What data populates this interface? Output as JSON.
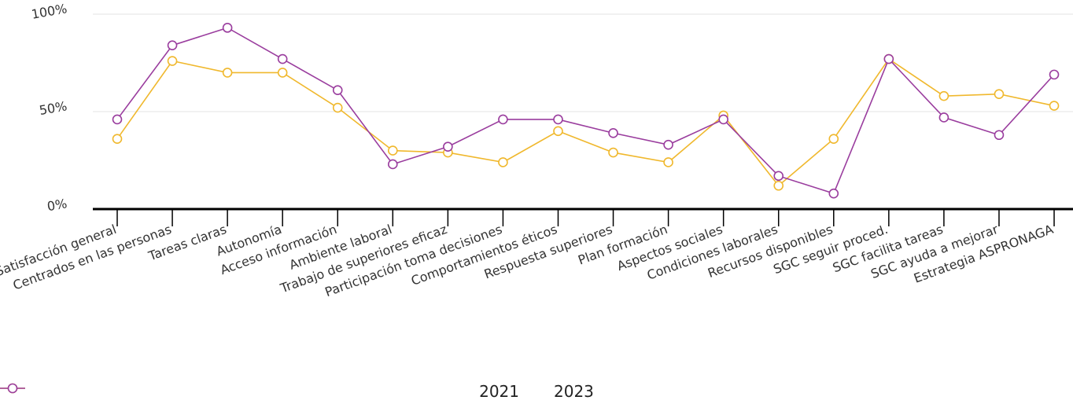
{
  "chart_data": {
    "type": "line",
    "title": "",
    "xlabel": "",
    "ylabel": "",
    "ylim": [
      0,
      100
    ],
    "y_ticks": [
      "0%",
      "50%",
      "100%"
    ],
    "y_tick_values": [
      0,
      50,
      100
    ],
    "grid": true,
    "legend_position": "bottom",
    "categories": [
      "Satisfacción general",
      "Centrados en las personas",
      "Tareas claras",
      "Autonomía",
      "Acceso información",
      "Ambiente laboral",
      "Trabajo de superiores eficaz",
      "Participación toma decisiones",
      "Comportamientos éticos",
      "Respuesta superiores",
      "Plan formación",
      "Aspectos sociales",
      "Condiciones laborales",
      "Recursos disponibles",
      "SGC seguir proced.",
      "SGC facilita tareas",
      "SGC ayuda a mejorar",
      "Estrategia ASPRONAGA"
    ],
    "series": [
      {
        "name": "2021",
        "color": "#f0b82d",
        "values": [
          36,
          76,
          70,
          70,
          52,
          30,
          29,
          24,
          40,
          29,
          24,
          48,
          12,
          36,
          77,
          58,
          59,
          53
        ]
      },
      {
        "name": "2023",
        "color": "#9a3d9e",
        "values": [
          46,
          84,
          93,
          77,
          61,
          23,
          32,
          46,
          46,
          39,
          33,
          46,
          17,
          8,
          77,
          47,
          38,
          69
        ]
      }
    ]
  }
}
